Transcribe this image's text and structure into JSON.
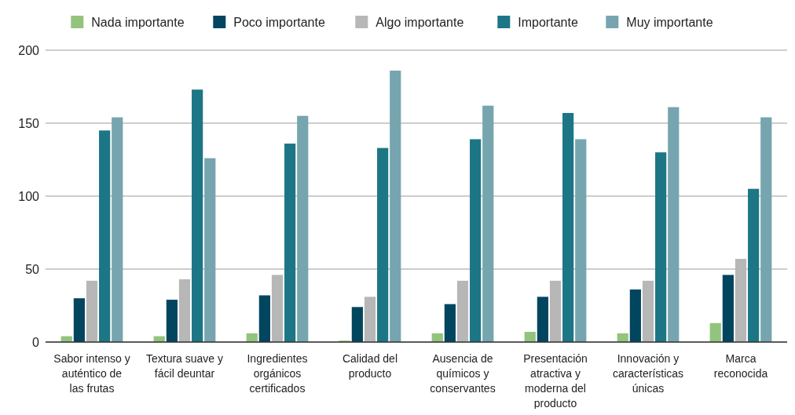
{
  "chart_data": {
    "type": "bar",
    "categories": [
      "Sabor intenso y auténtico de las frutas",
      "Textura suave y fácil deuntar",
      "Ingredientes orgánicos certificados",
      "Calidad del producto",
      "Ausencia de químicos y conservantes",
      "Presentación atractiva y moderna del producto",
      "Innovación y características únicas",
      "Marca reconocida"
    ],
    "series": [
      {
        "name": "Nada importante",
        "color": "#93c47d",
        "values": [
          4,
          4,
          6,
          1,
          6,
          7,
          6,
          13
        ]
      },
      {
        "name": "Poco importante",
        "color": "#02455f",
        "values": [
          30,
          29,
          32,
          24,
          26,
          31,
          36,
          46
        ]
      },
      {
        "name": "Algo importante",
        "color": "#b7b7b7",
        "values": [
          42,
          43,
          46,
          31,
          42,
          42,
          42,
          57
        ]
      },
      {
        "name": "Importante",
        "color": "#1c7685",
        "values": [
          145,
          173,
          136,
          133,
          139,
          157,
          130,
          105
        ]
      },
      {
        "name": "Muy importante",
        "color": "#76a5af",
        "values": [
          154,
          126,
          155,
          186,
          162,
          139,
          161,
          154
        ]
      }
    ],
    "ylim": [
      0,
      200
    ],
    "yticks": [
      0,
      50,
      100,
      150,
      200
    ],
    "grid": "y",
    "legend": "top"
  }
}
